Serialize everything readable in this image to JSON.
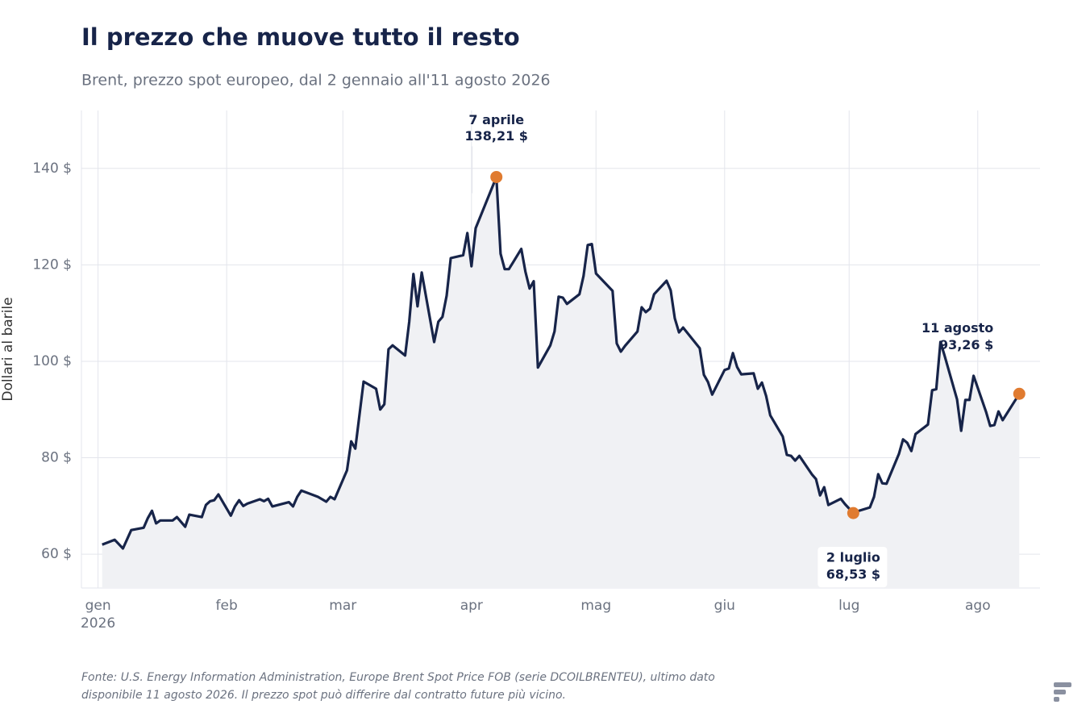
{
  "chart_data": {
    "type": "line",
    "title": "Il prezzo che muove tutto il resto",
    "subtitle": "Brent, prezzo spot europeo, dal 2 gennaio all'11 agosto 2026",
    "y_label": "Dollari al barile",
    "source": [
      "Fonte: U.S. Energy Information Administration, Europe Brent Spot Price FOB (serie DCOILBRENTEU), ultimo dato",
      "disponibile 11 agosto 2026. Il prezzo spot può differire dal contratto future più vicino."
    ],
    "x": [
      "2026-01-02",
      "2026-01-05",
      "2026-01-07",
      "2026-01-09",
      "2026-01-12",
      "2026-01-13",
      "2026-01-14",
      "2026-01-15",
      "2026-01-16",
      "2026-01-19",
      "2026-01-20",
      "2026-01-22",
      "2026-01-23",
      "2026-01-26",
      "2026-01-27",
      "2026-01-28",
      "2026-01-29",
      "2026-01-30",
      "2026-02-02",
      "2026-02-03",
      "2026-02-04",
      "2026-02-05",
      "2026-02-06",
      "2026-02-09",
      "2026-02-10",
      "2026-02-11",
      "2026-02-12",
      "2026-02-16",
      "2026-02-17",
      "2026-02-18",
      "2026-02-19",
      "2026-02-23",
      "2026-02-25",
      "2026-02-26",
      "2026-02-27",
      "2026-03-02",
      "2026-03-03",
      "2026-03-04",
      "2026-03-06",
      "2026-03-09",
      "2026-03-10",
      "2026-03-11",
      "2026-03-12",
      "2026-03-13",
      "2026-03-16",
      "2026-03-17",
      "2026-03-18",
      "2026-03-19",
      "2026-03-20",
      "2026-03-23",
      "2026-03-24",
      "2026-03-25",
      "2026-03-26",
      "2026-03-27",
      "2026-03-30",
      "2026-03-31",
      "2026-04-01",
      "2026-04-02",
      "2026-04-07",
      "2026-04-08",
      "2026-04-09",
      "2026-04-10",
      "2026-04-13",
      "2026-04-14",
      "2026-04-15",
      "2026-04-16",
      "2026-04-17",
      "2026-04-20",
      "2026-04-21",
      "2026-04-22",
      "2026-04-23",
      "2026-04-24",
      "2026-04-27",
      "2026-04-28",
      "2026-04-29",
      "2026-04-30",
      "2026-05-01",
      "2026-05-05",
      "2026-05-06",
      "2026-05-07",
      "2026-05-08",
      "2026-05-11",
      "2026-05-12",
      "2026-05-13",
      "2026-05-14",
      "2026-05-15",
      "2026-05-18",
      "2026-05-19",
      "2026-05-20",
      "2026-05-21",
      "2026-05-22",
      "2026-05-26",
      "2026-05-27",
      "2026-05-28",
      "2026-05-29",
      "2026-06-01",
      "2026-06-02",
      "2026-06-03",
      "2026-06-04",
      "2026-06-05",
      "2026-06-08",
      "2026-06-09",
      "2026-06-10",
      "2026-06-11",
      "2026-06-12",
      "2026-06-15",
      "2026-06-16",
      "2026-06-17",
      "2026-06-18",
      "2026-06-19",
      "2026-06-22",
      "2026-06-23",
      "2026-06-24",
      "2026-06-25",
      "2026-06-26",
      "2026-06-29",
      "2026-06-30",
      "2026-07-02",
      "2026-07-03",
      "2026-07-06",
      "2026-07-07",
      "2026-07-08",
      "2026-07-09",
      "2026-07-10",
      "2026-07-13",
      "2026-07-14",
      "2026-07-15",
      "2026-07-16",
      "2026-07-17",
      "2026-07-20",
      "2026-07-21",
      "2026-07-22",
      "2026-07-23",
      "2026-07-24",
      "2026-07-27",
      "2026-07-28",
      "2026-07-29",
      "2026-07-30",
      "2026-07-31",
      "2026-08-03",
      "2026-08-04",
      "2026-08-05",
      "2026-08-06",
      "2026-08-07",
      "2026-08-11"
    ],
    "series": [
      {
        "name": "Brent",
        "color": "#172449",
        "fill": "#f0f1f4",
        "values": [
          62.0,
          63.0,
          61.2,
          65.0,
          65.5,
          67.5,
          69.0,
          66.4,
          67.0,
          67.0,
          67.7,
          65.7,
          68.2,
          67.7,
          70.2,
          71.0,
          71.2,
          72.4,
          68.0,
          69.9,
          71.2,
          70.0,
          70.5,
          71.4,
          71.0,
          71.5,
          69.9,
          70.8,
          69.9,
          71.9,
          73.2,
          71.9,
          70.9,
          71.9,
          71.4,
          77.4,
          83.4,
          81.9,
          95.8,
          94.3,
          90.0,
          91.1,
          102.5,
          103.3,
          101.2,
          108.2,
          118.1,
          111.4,
          118.4,
          104.0,
          108.2,
          109.2,
          113.6,
          121.4,
          122.0,
          126.6,
          119.7,
          127.6,
          138.21,
          122.3,
          119.1,
          119.1,
          123.3,
          118.6,
          115.1,
          116.6,
          98.7,
          103.3,
          106.2,
          113.4,
          113.2,
          111.9,
          113.9,
          117.7,
          124.1,
          124.3,
          118.2,
          114.6,
          103.7,
          102.0,
          103.2,
          106.2,
          111.2,
          110.2,
          110.9,
          113.9,
          116.7,
          114.7,
          108.9,
          106.0,
          107.0,
          102.7,
          97.2,
          95.7,
          93.1,
          98.2,
          98.5,
          101.7,
          98.8,
          97.3,
          97.5,
          94.3,
          95.6,
          92.8,
          88.8,
          84.4,
          80.6,
          80.4,
          79.4,
          80.4,
          76.6,
          75.6,
          72.2,
          73.9,
          70.2,
          71.5,
          70.4,
          68.53,
          68.9,
          69.7,
          71.9,
          76.6,
          74.7,
          74.6,
          80.8,
          83.8,
          83.1,
          81.4,
          84.9,
          86.9,
          94.0,
          94.2,
          104.0,
          101.2,
          92.1,
          85.6,
          92.0,
          92.0,
          97.0,
          89.5,
          86.6,
          86.8,
          89.6,
          87.8,
          93.26
        ]
      }
    ],
    "annotations": [
      {
        "x": "2026-04-07",
        "y": 138.21,
        "label": "7 aprile",
        "value_label": "138,21 $",
        "position": "above"
      },
      {
        "x": "2026-07-02",
        "y": 68.53,
        "label": "2 luglio",
        "value_label": "68,53 $",
        "position": "below"
      },
      {
        "x": "2026-08-11",
        "y": 93.26,
        "label": "11 agosto",
        "value_label": "93,26 $",
        "position": "above-left"
      }
    ],
    "marker_color": "#e07b30",
    "xlim": [
      "2025-12-28",
      "2026-08-16"
    ],
    "xticks": [
      {
        "value": "2026-01-01",
        "label": "gen",
        "sublabel": "2026"
      },
      {
        "value": "2026-02-01",
        "label": "feb"
      },
      {
        "value": "2026-03-01",
        "label": "mar"
      },
      {
        "value": "2026-04-01",
        "label": "apr"
      },
      {
        "value": "2026-05-01",
        "label": "mag"
      },
      {
        "value": "2026-06-01",
        "label": "giu"
      },
      {
        "value": "2026-07-01",
        "label": "lug"
      },
      {
        "value": "2026-08-01",
        "label": "ago"
      }
    ],
    "ylim": [
      53,
      152
    ],
    "yticks": [
      {
        "value": 60,
        "label": "60 $"
      },
      {
        "value": 80,
        "label": "80 $"
      },
      {
        "value": 100,
        "label": "100 $"
      },
      {
        "value": 120,
        "label": "120 $"
      },
      {
        "value": 140,
        "label": "140 $"
      }
    ],
    "grid": true
  }
}
